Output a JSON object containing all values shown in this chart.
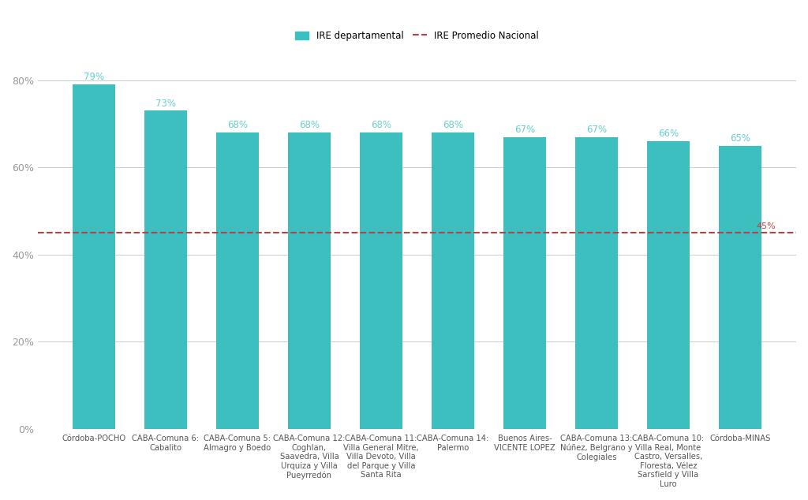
{
  "categories": [
    "Córdoba-POCHO",
    "CABA-Comuna 6:\nCabalito",
    "CABA-Comuna 5:\nAlmagro y Boedo",
    "CABA-Comuna 12:\nCoghlan,\nSaavedra, Villa\nUrquiza y Villa\nPueyrredón",
    "CABA-Comuna 11:\nVilla General Mitre,\nVilla Devoto, Villa\ndel Parque y Villa\nSanta Rita",
    "CABA-Comuna 14:\nPalermo",
    "Buenos Aires-\nVICENTE LOPEZ",
    "CABA-Comuna 13:\nNúñez, Belgrano y\nColegiales",
    "CABA-Comuna 10:\nVilla Real, Monte\nCastro, Versalles,\nFloresta, Vélez\nSarsfield y Villa\nLuro",
    "Córdoba-MINAS"
  ],
  "values": [
    0.79,
    0.73,
    0.68,
    0.68,
    0.68,
    0.68,
    0.67,
    0.67,
    0.66,
    0.65
  ],
  "labels": [
    "79%",
    "73%",
    "68%",
    "68%",
    "68%",
    "68%",
    "67%",
    "67%",
    "66%",
    "65%"
  ],
  "bar_color": "#3dbfbf",
  "national_avg": 0.45,
  "national_avg_label": "45%",
  "national_avg_color": "#b94040",
  "legend_bar_label": "IRE departamental",
  "legend_line_label": "IRE Promedio Nacional",
  "background_color": "#ffffff",
  "grid_color": "#cccccc",
  "tick_color": "#999999",
  "label_color": "#6bcece",
  "ylabel_ticks": [
    "0%",
    "20%",
    "40%",
    "60%",
    "80%"
  ],
  "ylabel_values": [
    0,
    0.2,
    0.4,
    0.6,
    0.8
  ]
}
